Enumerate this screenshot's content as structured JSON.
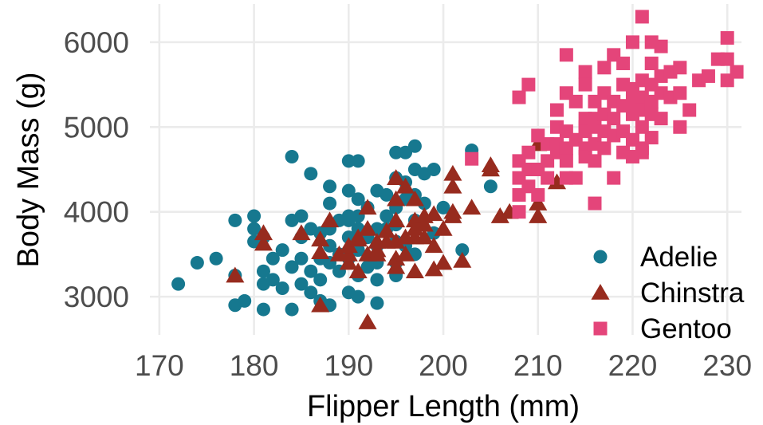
{
  "chart_data": {
    "type": "scatter",
    "xlabel": "Flipper Length (mm)",
    "ylabel": "Body Mass (g)",
    "xlim": [
      169,
      231.5
    ],
    "ylim": [
      2550,
      6450
    ],
    "x_ticks": [
      170,
      180,
      190,
      200,
      210,
      220,
      230
    ],
    "y_ticks": [
      3000,
      4000,
      5000,
      6000
    ],
    "grid": true,
    "legend_position": "bottom-right",
    "series": [
      {
        "name": "Adelie",
        "color": "#16788f",
        "marker": "circle",
        "points": [
          [
            172,
            3150
          ],
          [
            174,
            3400
          ],
          [
            176,
            3450
          ],
          [
            178,
            3900
          ],
          [
            178,
            3250
          ],
          [
            178,
            2900
          ],
          [
            179,
            2950
          ],
          [
            180,
            3950
          ],
          [
            180,
            3800
          ],
          [
            180,
            3650
          ],
          [
            181,
            3700
          ],
          [
            181,
            3300
          ],
          [
            181,
            3150
          ],
          [
            181,
            2850
          ],
          [
            182,
            3200
          ],
          [
            182,
            3450
          ],
          [
            183,
            3100
          ],
          [
            183,
            3550
          ],
          [
            184,
            4650
          ],
          [
            184,
            3900
          ],
          [
            184,
            3350
          ],
          [
            184,
            2850
          ],
          [
            185,
            3950
          ],
          [
            185,
            3700
          ],
          [
            185,
            3450
          ],
          [
            185,
            3150
          ],
          [
            186,
            4450
          ],
          [
            186,
            3800
          ],
          [
            186,
            3300
          ],
          [
            186,
            3050
          ],
          [
            187,
            3750
          ],
          [
            187,
            3450
          ],
          [
            187,
            3200
          ],
          [
            187,
            2950
          ],
          [
            188,
            4300
          ],
          [
            188,
            4100
          ],
          [
            188,
            3800
          ],
          [
            188,
            3600
          ],
          [
            188,
            3400
          ],
          [
            188,
            2900
          ],
          [
            189,
            3900
          ],
          [
            189,
            3500
          ],
          [
            189,
            3300
          ],
          [
            190,
            4600
          ],
          [
            190,
            4250
          ],
          [
            190,
            3950
          ],
          [
            190,
            3900
          ],
          [
            190,
            3700
          ],
          [
            190,
            3450
          ],
          [
            190,
            3050
          ],
          [
            191,
            4600
          ],
          [
            191,
            4150
          ],
          [
            191,
            3950
          ],
          [
            191,
            3800
          ],
          [
            191,
            3550
          ],
          [
            191,
            3250
          ],
          [
            191,
            3000
          ],
          [
            192,
            4050
          ],
          [
            192,
            3700
          ],
          [
            192,
            3350
          ],
          [
            193,
            4250
          ],
          [
            193,
            3800
          ],
          [
            193,
            3600
          ],
          [
            193,
            3400
          ],
          [
            193,
            3200
          ],
          [
            193,
            2925
          ],
          [
            194,
            4200
          ],
          [
            194,
            3950
          ],
          [
            194,
            3800
          ],
          [
            195,
            4700
          ],
          [
            195,
            4400
          ],
          [
            195,
            4050
          ],
          [
            195,
            3850
          ],
          [
            195,
            3650
          ],
          [
            195,
            3400
          ],
          [
            195,
            3250
          ],
          [
            196,
            4700
          ],
          [
            196,
            4350
          ],
          [
            196,
            4150
          ],
          [
            196,
            3600
          ],
          [
            197,
            4775
          ],
          [
            197,
            4500
          ],
          [
            197,
            4200
          ],
          [
            197,
            3900
          ],
          [
            197,
            3500
          ],
          [
            198,
            4450
          ],
          [
            198,
            4100
          ],
          [
            199,
            4500
          ],
          [
            199,
            3750
          ],
          [
            200,
            4050
          ],
          [
            202,
            3550
          ],
          [
            205,
            4300
          ],
          [
            203,
            4725
          ]
        ]
      },
      {
        "name": "Chinstra",
        "color": "#972b1e",
        "marker": "triangle",
        "points": [
          [
            178,
            3250
          ],
          [
            181,
            3750
          ],
          [
            181,
            3625
          ],
          [
            185,
            3750
          ],
          [
            187,
            3675
          ],
          [
            187,
            3525
          ],
          [
            187,
            2900
          ],
          [
            188,
            3900
          ],
          [
            189,
            3500
          ],
          [
            190,
            3400
          ],
          [
            190,
            3500
          ],
          [
            190,
            3600
          ],
          [
            191,
            3675
          ],
          [
            191,
            3700
          ],
          [
            191,
            3300
          ],
          [
            192,
            4050
          ],
          [
            192,
            3800
          ],
          [
            192,
            3500
          ],
          [
            192,
            2700
          ],
          [
            193,
            3650
          ],
          [
            193,
            3550
          ],
          [
            193,
            3500
          ],
          [
            194,
            3775
          ],
          [
            194,
            3650
          ],
          [
            195,
            4400
          ],
          [
            195,
            4150
          ],
          [
            195,
            3900
          ],
          [
            195,
            3650
          ],
          [
            195,
            3450
          ],
          [
            195,
            3350
          ],
          [
            196,
            4300
          ],
          [
            196,
            3700
          ],
          [
            196,
            3500
          ],
          [
            197,
            4150
          ],
          [
            197,
            3900
          ],
          [
            197,
            3800
          ],
          [
            197,
            3700
          ],
          [
            197,
            3300
          ],
          [
            198,
            3950
          ],
          [
            198,
            3850
          ],
          [
            198,
            3700
          ],
          [
            199,
            3975
          ],
          [
            199,
            3600
          ],
          [
            199,
            3325
          ],
          [
            200,
            3800
          ],
          [
            200,
            3400
          ],
          [
            201,
            4450
          ],
          [
            201,
            4300
          ],
          [
            201,
            4000
          ],
          [
            201,
            3950
          ],
          [
            202,
            3425
          ],
          [
            203,
            4050
          ],
          [
            205,
            4550
          ],
          [
            205,
            4500
          ],
          [
            206,
            3950
          ],
          [
            207,
            4000
          ],
          [
            210,
            3950
          ],
          [
            210,
            4100
          ],
          [
            210,
            4800
          ],
          [
            212,
            4350
          ]
        ]
      },
      {
        "name": "Gentoo",
        "color": "#e4457a",
        "marker": "square",
        "points": [
          [
            203,
            4625
          ],
          [
            208,
            5350
          ],
          [
            208,
            4600
          ],
          [
            208,
            4400
          ],
          [
            208,
            4200
          ],
          [
            208,
            4000
          ],
          [
            209,
            5500
          ],
          [
            209,
            4700
          ],
          [
            209,
            4500
          ],
          [
            209,
            4300
          ],
          [
            210,
            4900
          ],
          [
            210,
            4500
          ],
          [
            210,
            4200
          ],
          [
            211,
            4800
          ],
          [
            211,
            4600
          ],
          [
            211,
            4400
          ],
          [
            212,
            5200
          ],
          [
            212,
            5000
          ],
          [
            212,
            4800
          ],
          [
            212,
            4700
          ],
          [
            213,
            5850
          ],
          [
            213,
            5400
          ],
          [
            213,
            4950
          ],
          [
            213,
            4750
          ],
          [
            213,
            4600
          ],
          [
            213,
            4400
          ],
          [
            214,
            5300
          ],
          [
            214,
            4850
          ],
          [
            214,
            4400
          ],
          [
            215,
            5650
          ],
          [
            215,
            5500
          ],
          [
            215,
            5100
          ],
          [
            215,
            5000
          ],
          [
            215,
            4950
          ],
          [
            215,
            4750
          ],
          [
            215,
            4650
          ],
          [
            216,
            5300
          ],
          [
            216,
            5100
          ],
          [
            216,
            5000
          ],
          [
            216,
            4800
          ],
          [
            216,
            4600
          ],
          [
            216,
            4100
          ],
          [
            217,
            5700
          ],
          [
            217,
            5400
          ],
          [
            217,
            5150
          ],
          [
            217,
            4950
          ],
          [
            217,
            4750
          ],
          [
            218,
            5850
          ],
          [
            218,
            5300
          ],
          [
            218,
            5100
          ],
          [
            218,
            4900
          ],
          [
            218,
            4400
          ],
          [
            219,
            5750
          ],
          [
            219,
            5500
          ],
          [
            219,
            5250
          ],
          [
            219,
            4950
          ],
          [
            219,
            4700
          ],
          [
            220,
            6000
          ],
          [
            220,
            5450
          ],
          [
            220,
            5300
          ],
          [
            220,
            5150
          ],
          [
            220,
            4850
          ],
          [
            220,
            4650
          ],
          [
            221,
            6300
          ],
          [
            221,
            5550
          ],
          [
            221,
            5350
          ],
          [
            221,
            5200
          ],
          [
            221,
            5000
          ],
          [
            221,
            4750
          ],
          [
            221,
            4700
          ],
          [
            222,
            6000
          ],
          [
            222,
            5750
          ],
          [
            222,
            5500
          ],
          [
            222,
            5300
          ],
          [
            222,
            5150
          ],
          [
            222,
            4875
          ],
          [
            223,
            5950
          ],
          [
            223,
            5600
          ],
          [
            223,
            5400
          ],
          [
            223,
            5100
          ],
          [
            224,
            5650
          ],
          [
            224,
            5350
          ],
          [
            225,
            5700
          ],
          [
            225,
            5400
          ],
          [
            225,
            5000
          ],
          [
            226,
            5200
          ],
          [
            227,
            5550
          ],
          [
            228,
            5600
          ],
          [
            229,
            5800
          ],
          [
            230,
            6050
          ],
          [
            230,
            5800
          ],
          [
            230,
            5550
          ],
          [
            231,
            5650
          ]
        ]
      }
    ]
  }
}
